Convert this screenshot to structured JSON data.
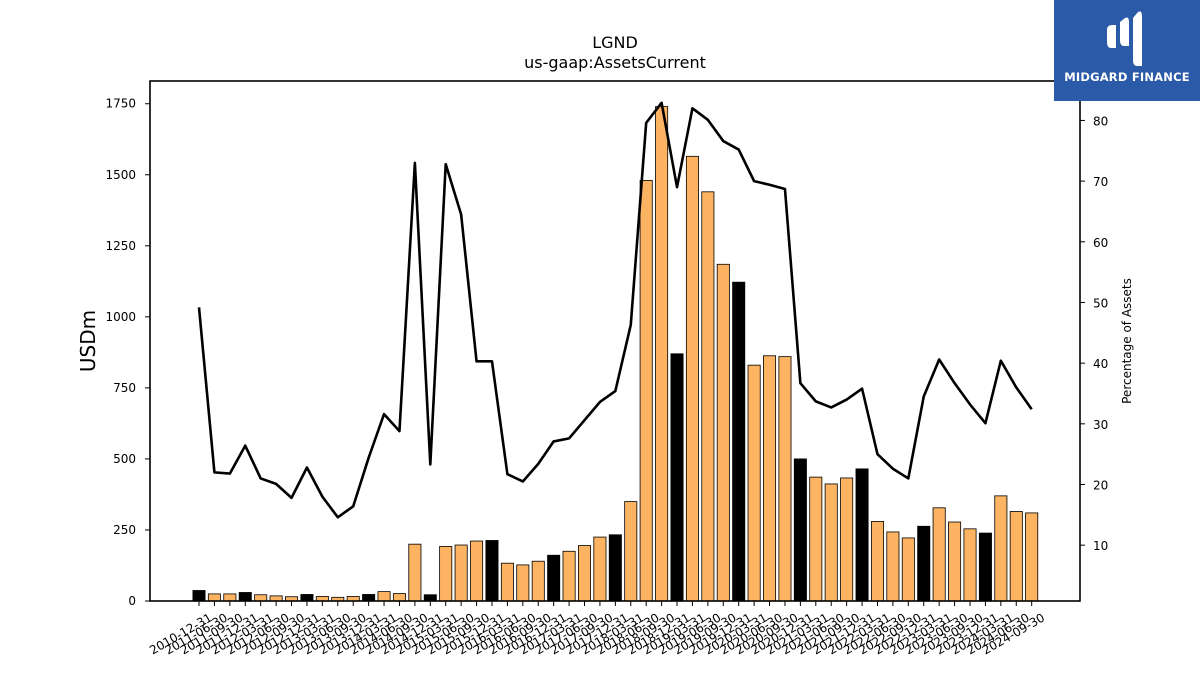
{
  "logo": {
    "text": "MIDGARD FINANCE",
    "background": "#2b5aa8",
    "icon": "midgard-logo-mark-icon"
  },
  "chart_data": {
    "type": "bar",
    "title": "LGND",
    "subtitle": "us-gaap:AssetsCurrent",
    "ylabel": "USDm",
    "y2label": "Percentage of Assets",
    "ylim": [
      0,
      1830
    ],
    "y2lim": [
      0.8,
      86.5
    ],
    "yticks": [
      0,
      250,
      500,
      750,
      1000,
      1250,
      1500,
      1750
    ],
    "y2ticks": [
      10,
      20,
      30,
      40,
      50,
      60,
      70,
      80
    ],
    "grid": false,
    "colors": {
      "annual_bar": "#000000",
      "quarterly_bar": "#fdb462",
      "line": "#000000"
    },
    "categories": [
      "2010-12-31",
      "2011-06-30",
      "2011-09-30",
      "2011-12-31",
      "2012-03-31",
      "2012-06-30",
      "2012-09-30",
      "2012-12-31",
      "2013-03-31",
      "2013-06-30",
      "2013-09-30",
      "2013-12-31",
      "2014-03-31",
      "2014-06-30",
      "2014-09-30",
      "2014-12-31",
      "2015-03-31",
      "2015-06-30",
      "2015-09-30",
      "2015-12-31",
      "2016-03-31",
      "2016-06-30",
      "2016-09-30",
      "2016-12-31",
      "2017-03-31",
      "2017-06-30",
      "2017-09-30",
      "2017-12-31",
      "2018-03-31",
      "2018-06-30",
      "2018-09-30",
      "2018-12-31",
      "2019-03-31",
      "2019-06-30",
      "2019-09-30",
      "2019-12-31",
      "2020-03-31",
      "2020-06-30",
      "2020-09-30",
      "2020-12-31",
      "2021-03-31",
      "2021-06-30",
      "2021-09-30",
      "2021-12-31",
      "2022-03-31",
      "2022-06-30",
      "2022-09-30",
      "2022-12-31",
      "2023-03-31",
      "2023-06-30",
      "2023-09-30",
      "2023-12-31",
      "2024-03-31",
      "2024-06-30",
      "2024-09-30"
    ],
    "series": [
      {
        "name": "AssetsCurrent",
        "axis": "left",
        "values": [
          37,
          25,
          25,
          30,
          22,
          18,
          15,
          23,
          16,
          13,
          16,
          23,
          33,
          26,
          200,
          22,
          192,
          197,
          211,
          213,
          133,
          127,
          140,
          161,
          175,
          195,
          225,
          233,
          350,
          1480,
          1740,
          870,
          1565,
          1440,
          1185,
          1122,
          830,
          863,
          860,
          500,
          436,
          412,
          433,
          465,
          280,
          243,
          222,
          263,
          328,
          278,
          254,
          239,
          370,
          315,
          310
        ],
        "annual": [
          true,
          false,
          false,
          true,
          false,
          false,
          false,
          true,
          false,
          false,
          false,
          true,
          false,
          false,
          false,
          true,
          false,
          false,
          false,
          true,
          false,
          false,
          false,
          true,
          false,
          false,
          false,
          true,
          false,
          false,
          false,
          true,
          false,
          false,
          false,
          true,
          false,
          false,
          false,
          true,
          false,
          false,
          false,
          true,
          false,
          false,
          false,
          true,
          false,
          false,
          false,
          true,
          false,
          false,
          false
        ]
      },
      {
        "name": "Percentage of Assets",
        "axis": "right",
        "type": "line",
        "values": [
          49.2,
          22.0,
          21.8,
          26.4,
          21.0,
          20.1,
          17.8,
          22.8,
          18.0,
          14.6,
          16.4,
          24.4,
          31.6,
          28.8,
          73.0,
          23.3,
          72.8,
          64.5,
          40.3,
          40.3,
          21.7,
          20.5,
          23.4,
          27.1,
          27.6,
          30.6,
          33.6,
          35.4,
          46.3,
          79.6,
          82.9,
          69.0,
          82.0,
          80.1,
          76.6,
          75.2,
          70.0,
          69.4,
          68.7,
          36.7,
          33.7,
          32.7,
          34.0,
          35.8,
          25.0,
          22.6,
          21.0,
          34.5,
          40.6,
          36.7,
          33.2,
          30.1,
          40.4,
          36.0,
          32.4
        ]
      }
    ]
  }
}
